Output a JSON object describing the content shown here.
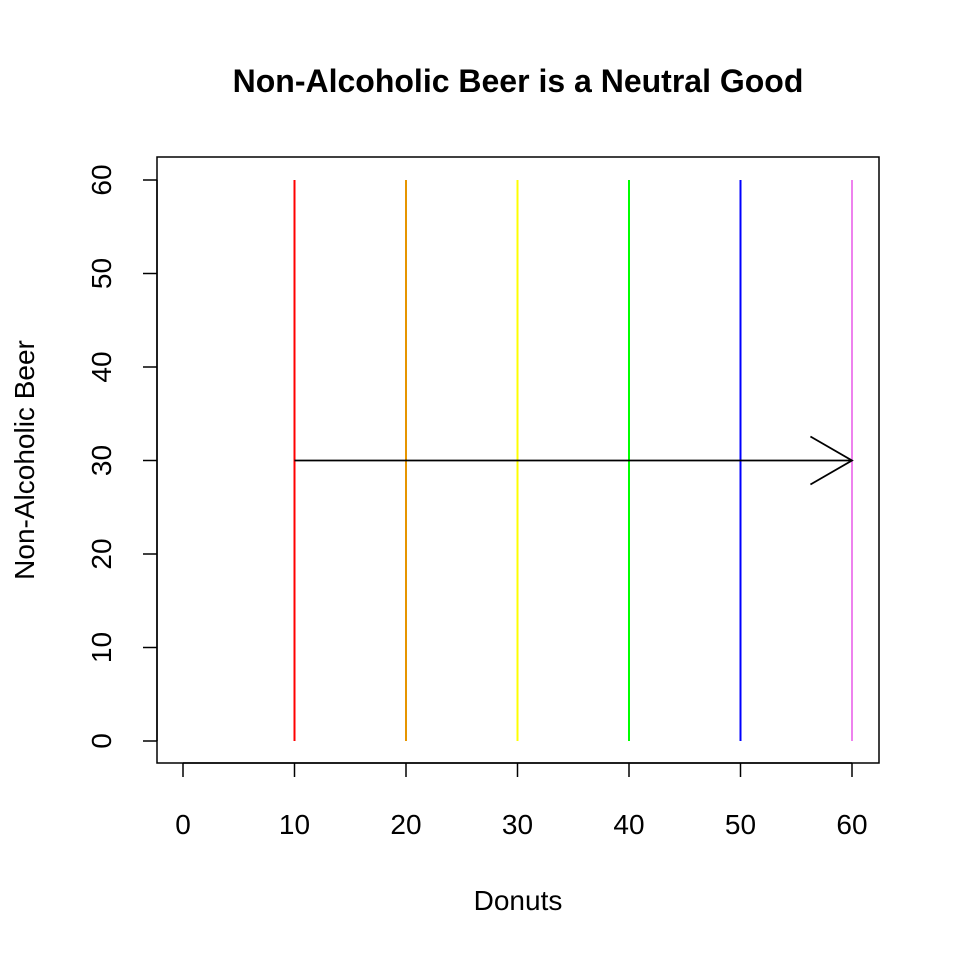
{
  "chart_data": {
    "type": "line",
    "title": "Non-Alcoholic Beer is a Neutral Good",
    "xlabel": "Donuts",
    "ylabel": "Non-Alcoholic Beer",
    "xlim": [
      0,
      60
    ],
    "ylim": [
      0,
      60
    ],
    "x_ticks": [
      0,
      10,
      20,
      30,
      40,
      50,
      60
    ],
    "y_ticks": [
      0,
      10,
      20,
      30,
      40,
      50,
      60
    ],
    "grid": false,
    "series": [
      {
        "x": [
          10,
          10
        ],
        "y": [
          0,
          60
        ],
        "color": "#ff0000"
      },
      {
        "x": [
          20,
          20
        ],
        "y": [
          0,
          60
        ],
        "color": "#e69500"
      },
      {
        "x": [
          30,
          30
        ],
        "y": [
          0,
          60
        ],
        "color": "#ffff00"
      },
      {
        "x": [
          40,
          40
        ],
        "y": [
          0,
          60
        ],
        "color": "#00ff00"
      },
      {
        "x": [
          50,
          50
        ],
        "y": [
          0,
          60
        ],
        "color": "#0000ff"
      },
      {
        "x": [
          60,
          60
        ],
        "y": [
          0,
          60
        ],
        "color": "#ee82ee"
      }
    ],
    "arrow": {
      "from": [
        10,
        30
      ],
      "to": [
        60,
        30
      ],
      "color": "#000000"
    }
  }
}
